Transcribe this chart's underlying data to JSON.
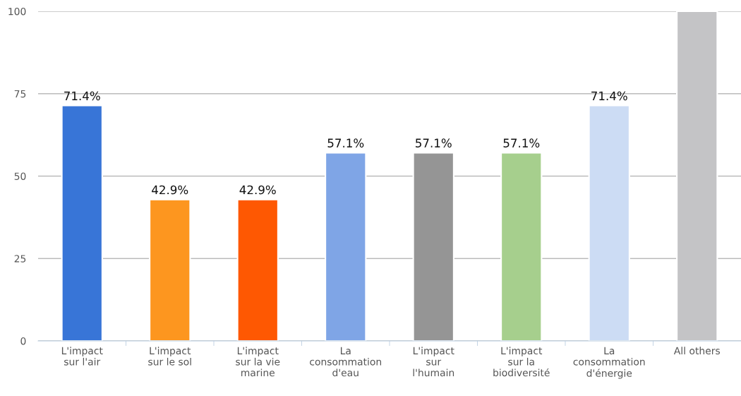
{
  "chart_data": {
    "type": "bar",
    "categories": [
      "L'impact\nsur l'air",
      "L'impact\nsur le sol",
      "L'impact\nsur la vie\nmarine",
      "La\nconsommation\nd'eau",
      "L'impact\nsur\nl'humain",
      "L'impact\nsur la\nbiodiversité",
      "La\nconsommation\nd'énergie",
      "All others"
    ],
    "values": [
      71.4,
      42.9,
      42.9,
      57.1,
      57.1,
      57.1,
      71.4,
      100
    ],
    "colors": [
      "#3875d7",
      "#fd961f",
      "#fe5802",
      "#7fa5e6",
      "#959595",
      "#a6cf8d",
      "#ccdcf4",
      "#c4c4c6"
    ],
    "value_labels": [
      "71.4%",
      "42.9%",
      "42.9%",
      "57.1%",
      "57.1%",
      "57.1%",
      "71.4%",
      null
    ],
    "ylim": [
      0,
      100
    ],
    "yticks": [
      0,
      25,
      50,
      75,
      100
    ],
    "grid": "y"
  }
}
